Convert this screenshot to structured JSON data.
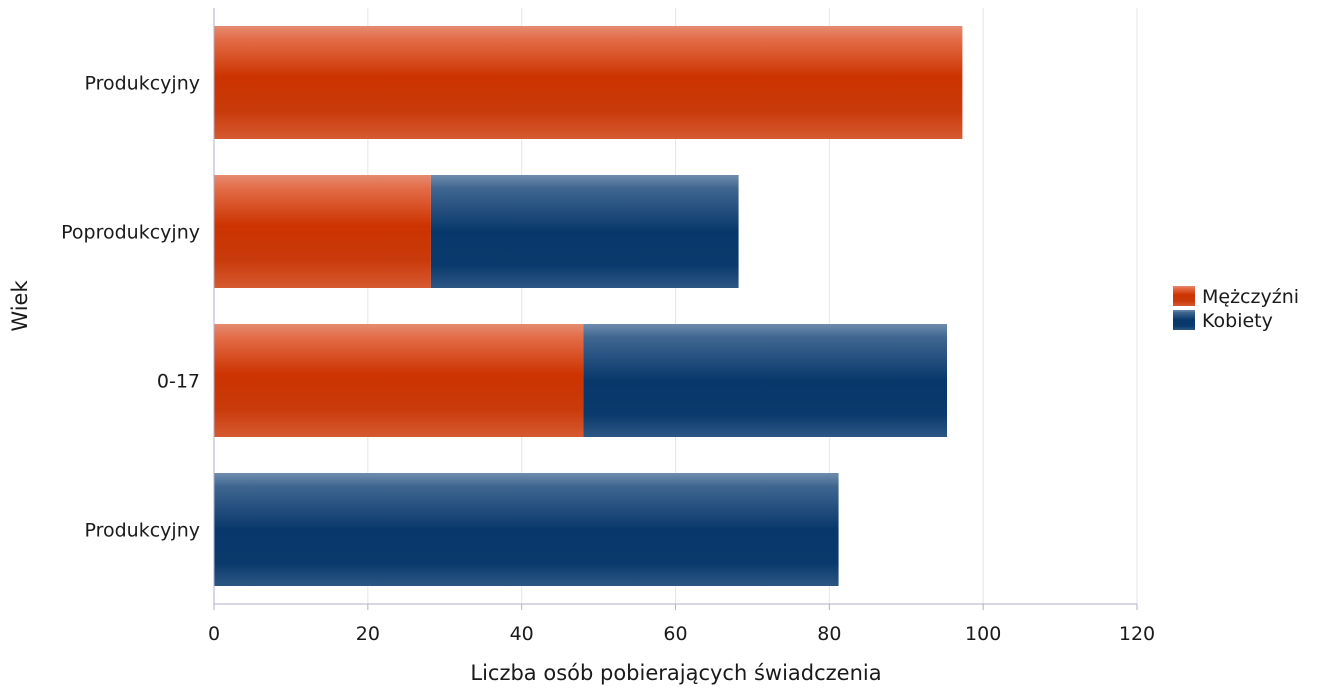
{
  "chart_data": {
    "type": "bar",
    "orientation": "horizontal",
    "stacked": true,
    "categories": [
      "Produkcyjny",
      "Poprodukcyjny",
      "0-17",
      "Produkcyjny"
    ],
    "series": [
      {
        "name": "Mężczyźni",
        "color": "#cc3300",
        "values": [
          97.3,
          28.2,
          48.0,
          0
        ]
      },
      {
        "name": "Kobiety",
        "color": "#08386b",
        "values": [
          0,
          40.0,
          47.3,
          81.2
        ]
      }
    ],
    "xlabel": "Liczba osób pobierających świadczenia",
    "ylabel": "Wiek",
    "xlim": [
      0,
      120
    ],
    "xticks": [
      "0",
      "20",
      "40",
      "60",
      "80",
      "100",
      "120"
    ],
    "grid": true,
    "legend_position": "right"
  }
}
